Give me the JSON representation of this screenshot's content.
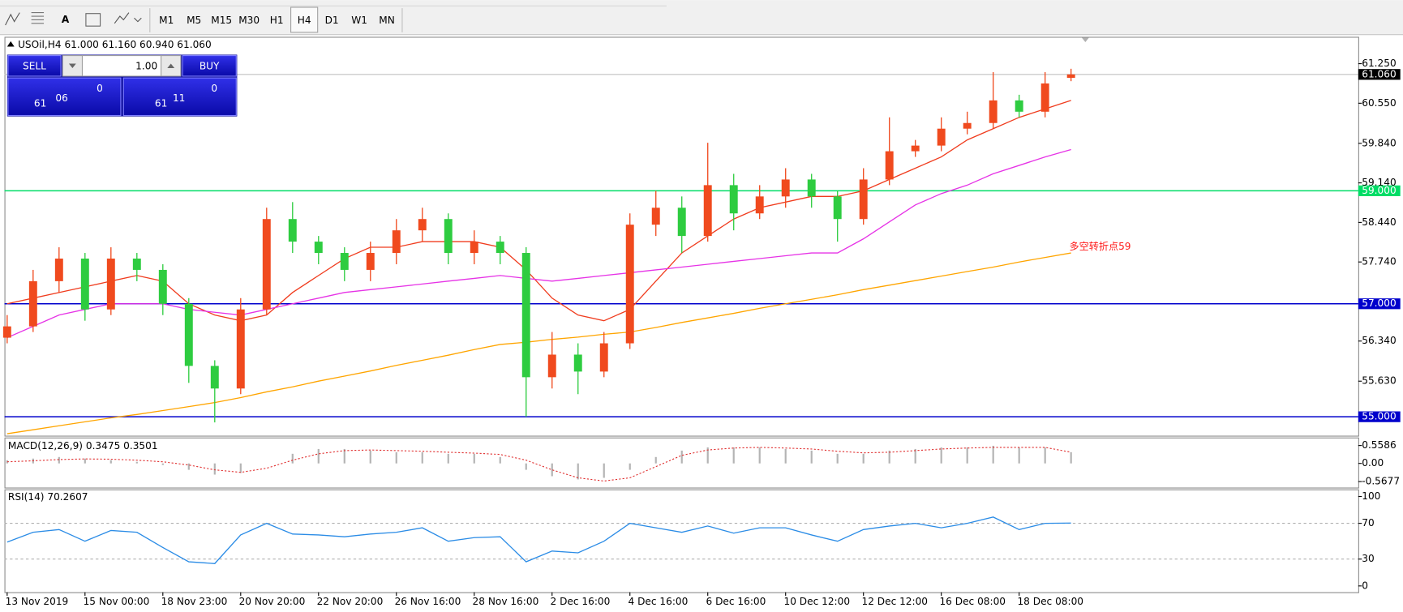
{
  "toolbar": {
    "text_tool": "A",
    "timeframes": [
      "M1",
      "M5",
      "M15",
      "M30",
      "H1",
      "H4",
      "D1",
      "W1",
      "MN"
    ],
    "active_index": 5
  },
  "trade_panel": {
    "sell": "SELL",
    "buy": "BUY",
    "lot": "1.00",
    "bid": {
      "big": "61",
      "main": "06",
      "small": "0"
    },
    "ask": {
      "big": "61",
      "main": "11",
      "small": "0"
    }
  },
  "chart_data": [
    {
      "type": "candlestick",
      "title": "USOil,H4  61.000 61.160 60.940 61.060",
      "categories": [
        "13 Nov 2019",
        null,
        null,
        "15 Nov 00:00",
        null,
        null,
        "18 Nov 23:00",
        null,
        null,
        "20 Nov 20:00",
        null,
        null,
        "22 Nov 20:00",
        null,
        null,
        "26 Nov 16:00",
        null,
        null,
        "28 Nov 16:00",
        null,
        null,
        "2 Dec 16:00",
        null,
        null,
        "4 Dec 16:00",
        null,
        null,
        "6 Dec 16:00",
        null,
        null,
        "10 Dec 12:00",
        null,
        null,
        "12 Dec 12:00",
        null,
        null,
        "16 Dec 08:00",
        null,
        null,
        "18 Dec 08:00",
        null,
        null
      ],
      "open": [
        56.4,
        56.6,
        57.4,
        57.8,
        56.9,
        57.8,
        57.6,
        57.0,
        55.9,
        55.5,
        56.9,
        58.5,
        58.1,
        57.9,
        57.6,
        57.9,
        58.3,
        58.5,
        57.9,
        58.1,
        57.9,
        55.7,
        56.1,
        55.8,
        56.3,
        58.4,
        58.7,
        58.2,
        59.1,
        58.6,
        58.9,
        59.2,
        58.9,
        58.5,
        59.2,
        59.7,
        59.8,
        60.1,
        60.2,
        60.6,
        60.4,
        61.0
      ],
      "high": [
        56.8,
        57.6,
        58.0,
        57.9,
        58.0,
        57.9,
        57.7,
        57.1,
        56.0,
        57.1,
        58.7,
        58.8,
        58.2,
        58.0,
        58.1,
        58.5,
        58.7,
        58.6,
        58.3,
        58.2,
        58.0,
        56.5,
        56.3,
        56.5,
        58.6,
        59.0,
        58.9,
        59.85,
        59.3,
        59.1,
        59.4,
        59.3,
        59.0,
        59.4,
        60.3,
        59.9,
        60.3,
        60.4,
        61.1,
        60.7,
        61.1,
        61.16
      ],
      "low": [
        56.3,
        56.5,
        57.2,
        56.7,
        56.8,
        57.4,
        56.8,
        55.6,
        54.9,
        55.4,
        56.8,
        57.9,
        57.7,
        57.4,
        57.4,
        57.7,
        58.1,
        57.7,
        57.7,
        57.7,
        55.0,
        55.5,
        55.4,
        55.7,
        56.2,
        58.2,
        57.9,
        58.1,
        58.3,
        58.5,
        58.7,
        58.7,
        58.1,
        58.4,
        59.1,
        59.6,
        59.7,
        60.0,
        60.1,
        60.3,
        60.3,
        60.94
      ],
      "close": [
        56.6,
        57.4,
        57.8,
        56.9,
        57.8,
        57.6,
        57.0,
        55.9,
        55.5,
        56.9,
        58.5,
        58.1,
        57.9,
        57.6,
        57.9,
        58.3,
        58.5,
        57.9,
        58.1,
        57.9,
        55.7,
        56.1,
        55.8,
        56.3,
        58.4,
        58.7,
        58.2,
        59.1,
        58.6,
        58.9,
        59.2,
        58.9,
        58.5,
        59.2,
        59.7,
        59.8,
        60.1,
        60.2,
        60.6,
        60.4,
        60.9,
        61.06
      ],
      "up_color": "#f04a1e",
      "down_color": "#2ecc40",
      "series": [
        {
          "color": "#f03c1e",
          "values": [
            57.0,
            57.1,
            57.2,
            57.3,
            57.4,
            57.5,
            57.4,
            57.0,
            56.8,
            56.7,
            56.8,
            57.2,
            57.5,
            57.8,
            58.0,
            58.0,
            58.1,
            58.1,
            58.1,
            58.0,
            57.6,
            57.1,
            56.8,
            56.7,
            56.9,
            57.4,
            57.9,
            58.2,
            58.5,
            58.7,
            58.8,
            58.9,
            58.9,
            59.0,
            59.2,
            59.4,
            59.6,
            59.9,
            60.1,
            60.3,
            60.45,
            60.6
          ]
        },
        {
          "color": "#e633e6",
          "values": [
            56.4,
            56.6,
            56.8,
            56.9,
            57.0,
            57.0,
            57.0,
            56.9,
            56.85,
            56.8,
            56.9,
            57.0,
            57.1,
            57.2,
            57.25,
            57.3,
            57.35,
            57.4,
            57.45,
            57.5,
            57.45,
            57.4,
            57.45,
            57.5,
            57.55,
            57.6,
            57.65,
            57.7,
            57.75,
            57.8,
            57.85,
            57.9,
            57.9,
            58.15,
            58.45,
            58.75,
            58.95,
            59.1,
            59.3,
            59.45,
            59.6,
            59.73
          ]
        },
        {
          "color": "#ffa500",
          "values": [
            54.7,
            54.77,
            54.84,
            54.91,
            54.98,
            55.04,
            55.11,
            55.18,
            55.25,
            55.34,
            55.44,
            55.53,
            55.63,
            55.72,
            55.81,
            55.91,
            56.0,
            56.09,
            56.19,
            56.28,
            56.32,
            56.37,
            56.41,
            56.46,
            56.5,
            56.58,
            56.67,
            56.75,
            56.83,
            56.92,
            57.0,
            57.08,
            57.16,
            57.25,
            57.33,
            57.41,
            57.49,
            57.57,
            57.65,
            57.74,
            57.82,
            57.9
          ]
        }
      ],
      "levels": [
        {
          "value": 59,
          "label": "59.000",
          "color": "#00dd66"
        },
        {
          "value": 57,
          "label": "57.000",
          "color": "#0000cc"
        },
        {
          "value": 55,
          "label": "55.000",
          "color": "#0000cc"
        }
      ],
      "current_price": {
        "value": 61.06,
        "label": "61.060"
      },
      "annotation": "多空转折点59",
      "annotation_color": "#ff1a1a",
      "ylim": [
        54.665,
        61.71
      ],
      "yticks": [
        {
          "value": 61.25,
          "label": "61.250"
        },
        {
          "value": 60.55,
          "label": "60.550"
        },
        {
          "value": 59.84,
          "label": "59.840"
        },
        {
          "value": 59.14,
          "label": "59.140"
        },
        {
          "value": 58.44,
          "label": "58.440"
        },
        {
          "value": 57.74,
          "label": "57.740"
        },
        {
          "value": 56.34,
          "label": "56.340"
        },
        {
          "value": 55.63,
          "label": "55.630"
        }
      ]
    },
    {
      "type": "macd",
      "title": "MACD(12,26,9) 0.3475 0.3501",
      "values": [
        0.1,
        0.15,
        0.2,
        0.15,
        0.1,
        0.05,
        -0.05,
        -0.2,
        -0.35,
        -0.3,
        0.0,
        0.3,
        0.45,
        0.45,
        0.4,
        0.35,
        0.35,
        0.3,
        0.3,
        0.2,
        -0.2,
        -0.4,
        -0.5,
        -0.45,
        -0.2,
        0.2,
        0.4,
        0.5,
        0.5,
        0.5,
        0.45,
        0.4,
        0.3,
        0.3,
        0.4,
        0.45,
        0.5,
        0.5,
        0.55,
        0.5,
        0.5,
        0.35
      ],
      "signal": [
        0.05,
        0.08,
        0.12,
        0.14,
        0.13,
        0.1,
        0.05,
        -0.05,
        -0.2,
        -0.28,
        -0.15,
        0.1,
        0.3,
        0.4,
        0.42,
        0.4,
        0.38,
        0.35,
        0.32,
        0.28,
        0.1,
        -0.2,
        -0.45,
        -0.55,
        -0.45,
        -0.1,
        0.25,
        0.42,
        0.48,
        0.5,
        0.48,
        0.45,
        0.38,
        0.33,
        0.35,
        0.4,
        0.45,
        0.48,
        0.5,
        0.5,
        0.5,
        0.35
      ],
      "color": "#b4b4b4",
      "signal_color": "#e03030",
      "ylim": [
        -0.754,
        0.782
      ],
      "yticks": [
        0.5586,
        {
          "value": 0,
          "label": "0.00"
        },
        -0.5677
      ]
    },
    {
      "type": "line",
      "title": "RSI(14) 70.2607",
      "values": [
        49,
        60,
        63,
        50,
        62,
        60,
        43,
        27,
        25,
        57,
        70,
        58,
        57,
        55,
        58,
        60,
        65,
        50,
        54,
        55,
        27,
        39,
        37,
        50,
        70,
        65,
        60,
        67,
        59,
        65,
        65,
        57,
        50,
        63,
        67,
        70,
        65,
        70,
        77,
        63,
        70,
        70.2607
      ],
      "color": "#2b8ce6",
      "levels": [
        70,
        30
      ],
      "ylim": [
        -7,
        108
      ],
      "yticks": [
        100,
        70,
        30,
        0
      ]
    }
  ]
}
